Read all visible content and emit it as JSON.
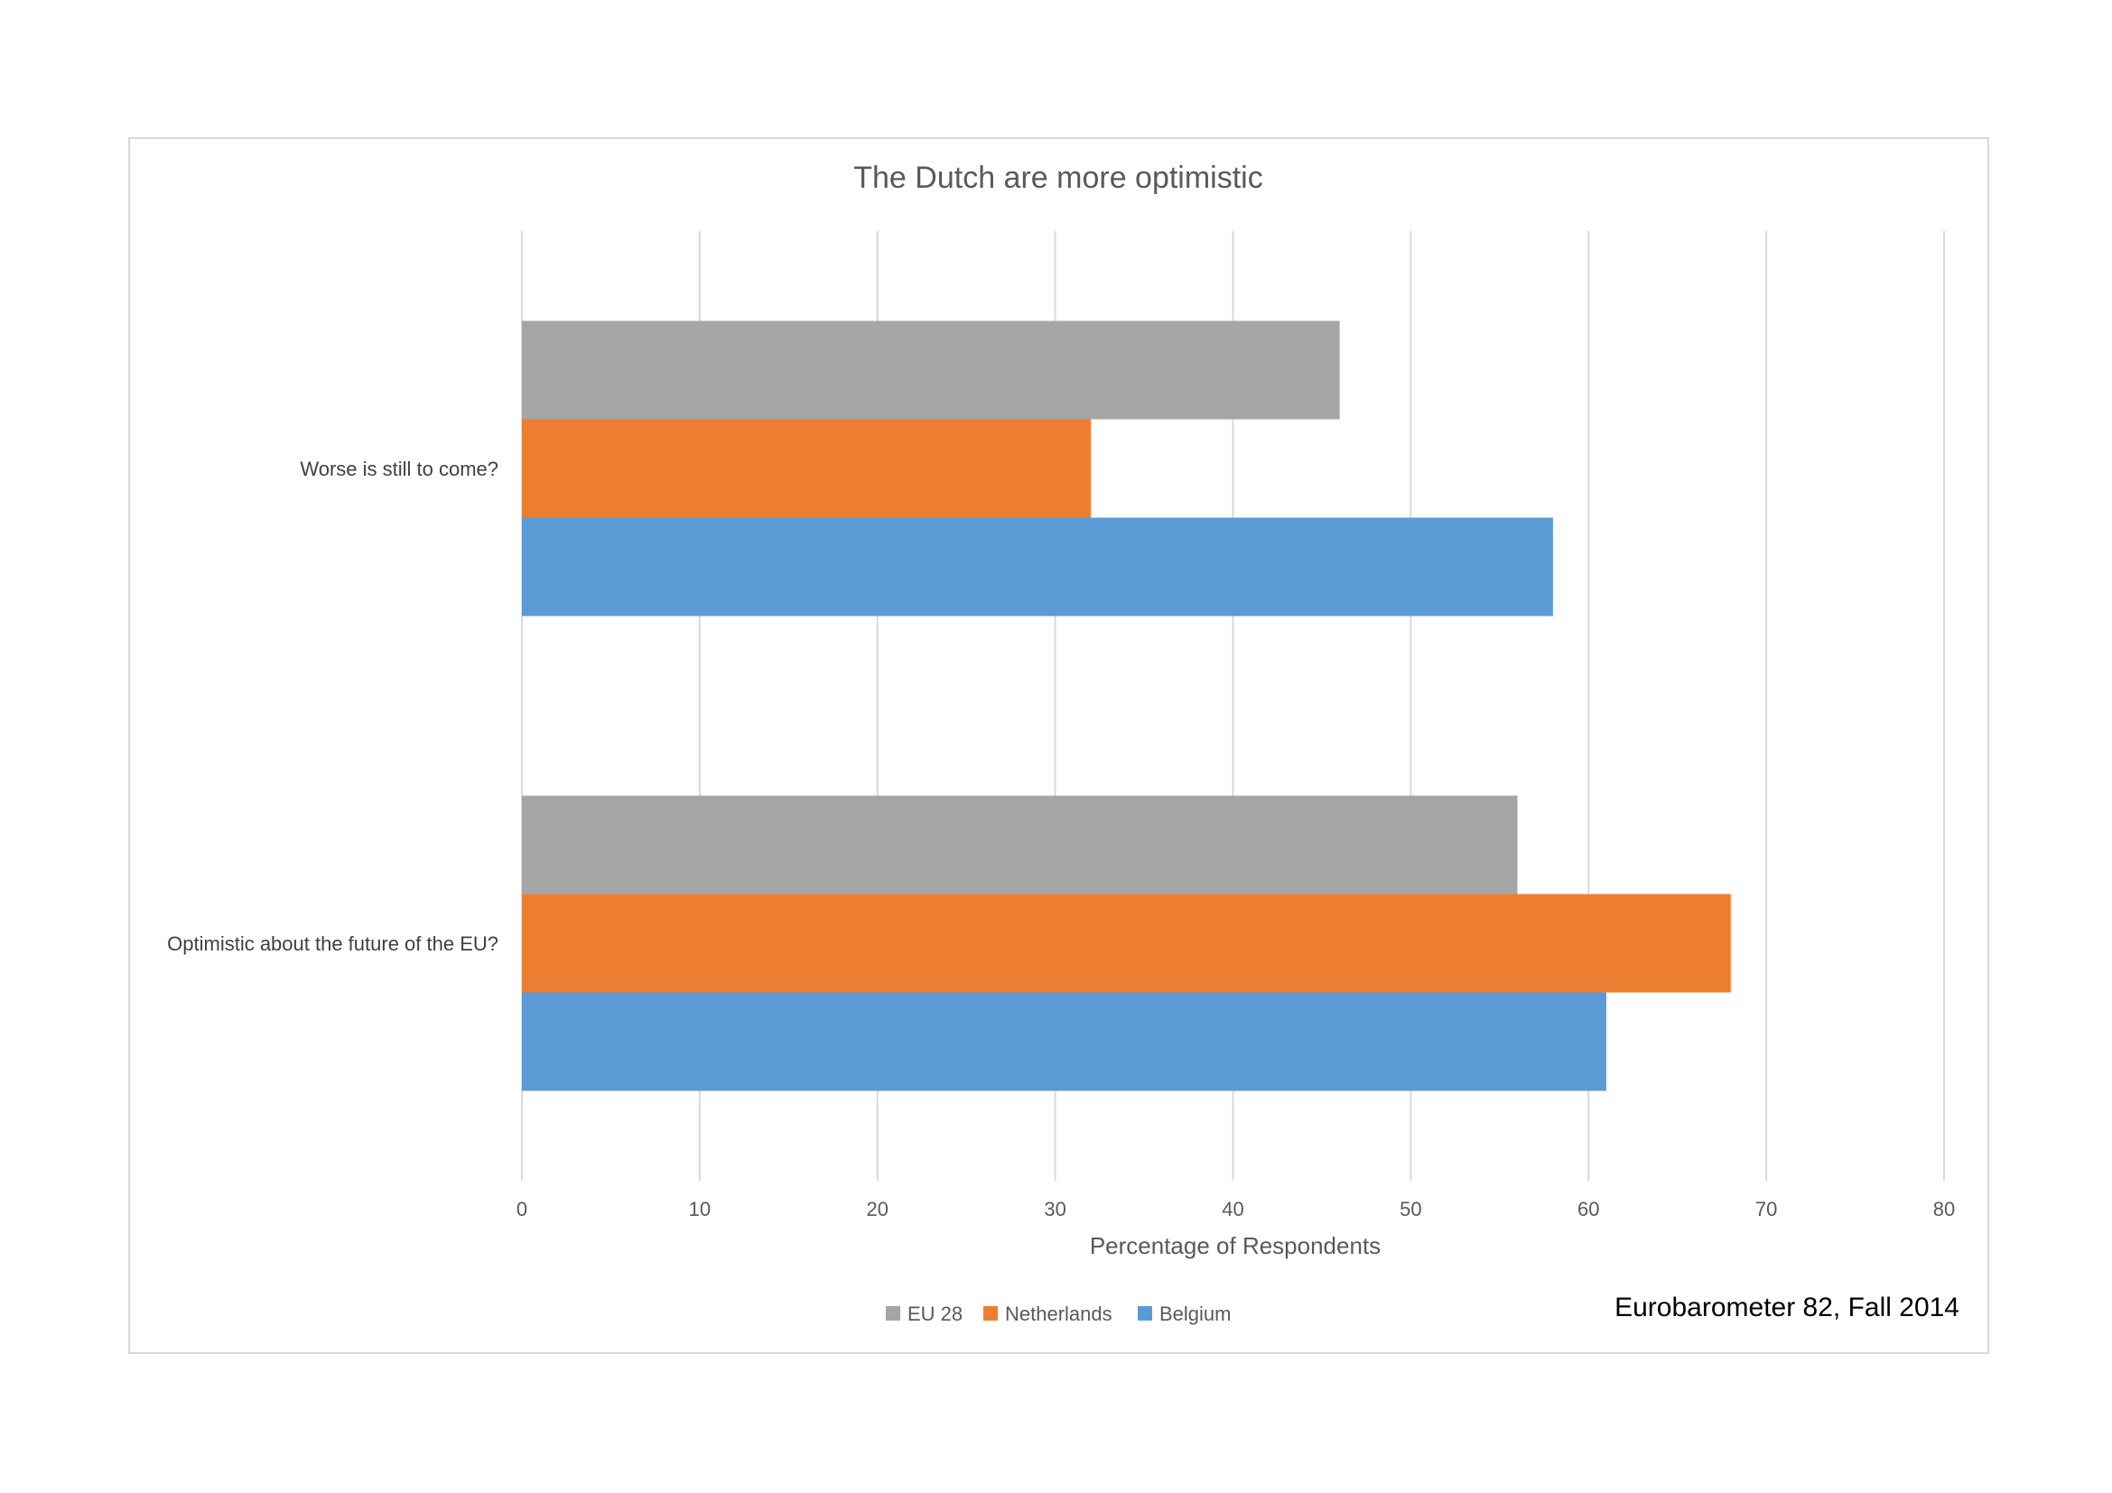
{
  "chart_data": {
    "type": "bar",
    "orientation": "horizontal",
    "title": "The Dutch are more optimistic",
    "xlabel": "Percentage of Respondents",
    "ylabel": "",
    "xlim": [
      0,
      80
    ],
    "x_ticks": [
      "0",
      "10",
      "20",
      "30",
      "40",
      "50",
      "60",
      "70",
      "80"
    ],
    "categories": [
      "Worse is still to come?",
      "Optimistic about the future of the EU?"
    ],
    "series": [
      {
        "name": "EU 28",
        "color": "#a5a5a5",
        "values": [
          46,
          56
        ]
      },
      {
        "name": "Netherlands",
        "color": "#ed7d31",
        "values": [
          32,
          68
        ]
      },
      {
        "name": "Belgium",
        "color": "#5b9bd5",
        "values": [
          58,
          61
        ]
      }
    ],
    "grid": true,
    "legend_position": "bottom",
    "annotation": "Eurobarometer 82, Fall 2014"
  }
}
